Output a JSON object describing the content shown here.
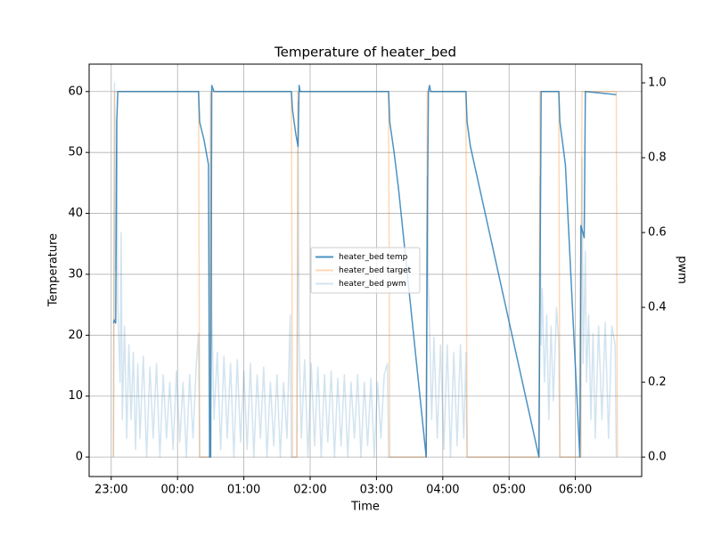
{
  "chart_data": {
    "type": "line",
    "title": "Temperature of heater_bed",
    "xlabel": "Time",
    "ylabel": "Temperature",
    "y2label": "pwm",
    "xlim": [
      "22:40",
      "07:00"
    ],
    "xticks": [
      "23:00",
      "00:00",
      "01:00",
      "02:00",
      "03:00",
      "04:00",
      "05:00",
      "06:00"
    ],
    "ylim": [
      -3.2,
      64.5
    ],
    "yticks": [
      0,
      10,
      20,
      30,
      40,
      50,
      60
    ],
    "y2lim": [
      -0.052,
      1.05
    ],
    "y2ticks": [
      {
        "value": 0,
        "label": "0.0"
      },
      {
        "value": 0.2,
        "label": "0.2"
      },
      {
        "value": 0.4,
        "label": "0.4"
      },
      {
        "value": 0.6,
        "label": "0.6"
      },
      {
        "value": 0.8,
        "label": "0.8"
      },
      {
        "value": 1,
        "label": "1.0"
      }
    ],
    "grid": true,
    "legend": "center",
    "series": [
      {
        "name": "heater_bed temp",
        "color": "#1f77b4",
        "alpha": 0.8,
        "x": [
          "23:02",
          "23:03",
          "23:04",
          "23:05",
          "23:06",
          "23:30",
          "00:00",
          "00:19",
          "00:20",
          "00:24",
          "00:28",
          "00:29",
          "00:30",
          "00:31",
          "00:33",
          "01:00",
          "01:43",
          "01:44",
          "01:47",
          "01:49",
          "01:50",
          "01:51",
          "02:30",
          "03:11",
          "03:12",
          "03:16",
          "03:20",
          "03:45",
          "03:46",
          "03:47",
          "03:48",
          "03:49",
          "04:21",
          "04:22",
          "04:25",
          "05:27",
          "05:28",
          "05:29",
          "05:45",
          "05:46",
          "05:51",
          "06:04",
          "06:05",
          "06:08",
          "06:09",
          "06:37"
        ],
        "values": [
          22,
          22.5,
          22,
          55,
          60,
          60,
          60,
          60,
          55,
          52,
          48,
          0,
          0,
          61,
          60,
          60,
          60,
          57,
          53,
          51,
          61,
          60,
          60,
          60,
          55,
          50,
          44,
          0,
          36,
          60,
          61,
          60,
          60,
          55,
          51,
          0,
          28,
          60,
          60,
          55,
          48,
          0,
          38,
          36,
          60,
          59.5
        ]
      },
      {
        "name": "heater_bed target",
        "color": "#ff7f0e",
        "alpha": 0.3,
        "x": [
          "23:02",
          "23:03",
          "00:19",
          "00:20",
          "00:29",
          "00:30",
          "01:43",
          "01:44",
          "01:48",
          "01:49",
          "03:11",
          "03:12",
          "03:45",
          "03:46",
          "04:21",
          "04:22",
          "05:27",
          "05:28",
          "05:45",
          "05:46",
          "06:05",
          "06:06",
          "06:37",
          "06:38"
        ],
        "values": [
          0,
          60,
          60,
          0,
          0,
          60,
          60,
          0,
          0,
          60,
          60,
          0,
          0,
          60,
          60,
          0,
          0,
          60,
          60,
          0,
          0,
          60,
          60,
          0
        ]
      },
      {
        "name": "heater_bed pwm",
        "color": "#1f77b4",
        "alpha": 0.2,
        "axis": "y2",
        "x": [
          "23:02",
          "23:03",
          "23:04",
          "23:05",
          "23:06",
          "23:08",
          "23:09",
          "23:10",
          "23:12",
          "23:14",
          "23:16",
          "23:18",
          "23:20",
          "23:22",
          "23:24",
          "23:26",
          "23:29",
          "23:32",
          "23:35",
          "23:38",
          "23:41",
          "23:44",
          "23:47",
          "23:50",
          "23:53",
          "23:56",
          "23:59",
          "00:02",
          "00:05",
          "00:08",
          "00:11",
          "00:14",
          "00:17",
          "00:19",
          "00:20",
          "00:29",
          "00:30",
          "00:31",
          "00:33",
          "00:36",
          "00:39",
          "00:42",
          "00:45",
          "00:48",
          "00:51",
          "00:54",
          "00:57",
          "01:00",
          "01:03",
          "01:06",
          "01:09",
          "01:12",
          "01:15",
          "01:18",
          "01:21",
          "01:24",
          "01:27",
          "01:30",
          "01:33",
          "01:36",
          "01:39",
          "01:42",
          "01:43",
          "01:48",
          "01:49",
          "01:50",
          "01:52",
          "01:55",
          "01:58",
          "02:01",
          "02:04",
          "02:07",
          "02:10",
          "02:13",
          "02:16",
          "02:19",
          "02:22",
          "02:25",
          "02:28",
          "02:31",
          "02:34",
          "02:37",
          "02:40",
          "02:43",
          "02:46",
          "02:49",
          "02:52",
          "02:55",
          "02:58",
          "03:01",
          "03:04",
          "03:07",
          "03:10",
          "03:11",
          "03:45",
          "03:46",
          "03:47",
          "03:48",
          "03:50",
          "03:52",
          "03:55",
          "03:58",
          "04:01",
          "04:04",
          "04:07",
          "04:10",
          "04:13",
          "04:16",
          "04:19",
          "04:21",
          "04:22",
          "05:27",
          "05:28",
          "05:29",
          "05:30",
          "05:32",
          "05:34",
          "05:36",
          "05:38",
          "05:40",
          "05:43",
          "05:45",
          "05:46",
          "06:04",
          "06:06",
          "06:07",
          "06:09",
          "06:10",
          "06:12",
          "06:14",
          "06:16",
          "06:18",
          "06:21",
          "06:24",
          "06:27",
          "06:30",
          "06:33",
          "06:36",
          "06:37"
        ],
        "values": [
          0,
          1.0,
          0.5,
          0.9,
          0.4,
          0.2,
          0.6,
          0.1,
          0.35,
          0.05,
          0.3,
          0.1,
          0.28,
          0.02,
          0.25,
          0.05,
          0.27,
          0,
          0.24,
          0.05,
          0.25,
          0,
          0.22,
          0.05,
          0.2,
          0.02,
          0.23,
          0.04,
          0.2,
          0,
          0.22,
          0.05,
          0.25,
          0.33,
          0,
          0,
          0.97,
          0.4,
          0.1,
          0.28,
          0.02,
          0.27,
          0.05,
          0.25,
          0,
          0.26,
          0.04,
          0.23,
          0.02,
          0.25,
          0,
          0.22,
          0.05,
          0.24,
          0,
          0.2,
          0.03,
          0.22,
          0,
          0.2,
          0.05,
          0.38,
          0,
          0,
          0.95,
          0.3,
          0.05,
          0.26,
          0,
          0.25,
          0.03,
          0.24,
          0,
          0.22,
          0.04,
          0.23,
          0,
          0.21,
          0.03,
          0.22,
          0,
          0.2,
          0.05,
          0.22,
          0,
          0.2,
          0.03,
          0.21,
          0,
          0.2,
          0.05,
          0.22,
          0.25,
          0,
          0,
          0.75,
          0.45,
          0.35,
          0.1,
          0.32,
          0.05,
          0.3,
          0.02,
          0.3,
          0,
          0.28,
          0.03,
          0.3,
          0.05,
          0.28,
          0,
          0,
          0.75,
          0.3,
          0.45,
          0.2,
          0.38,
          0.1,
          0.35,
          0.15,
          0.4,
          0.3,
          0,
          0,
          0.8,
          0.25,
          0.55,
          0.2,
          0.38,
          0.1,
          0.33,
          0.05,
          0.35,
          0.1,
          0.36,
          0.05,
          0.35,
          0.3,
          0
        ]
      }
    ]
  }
}
